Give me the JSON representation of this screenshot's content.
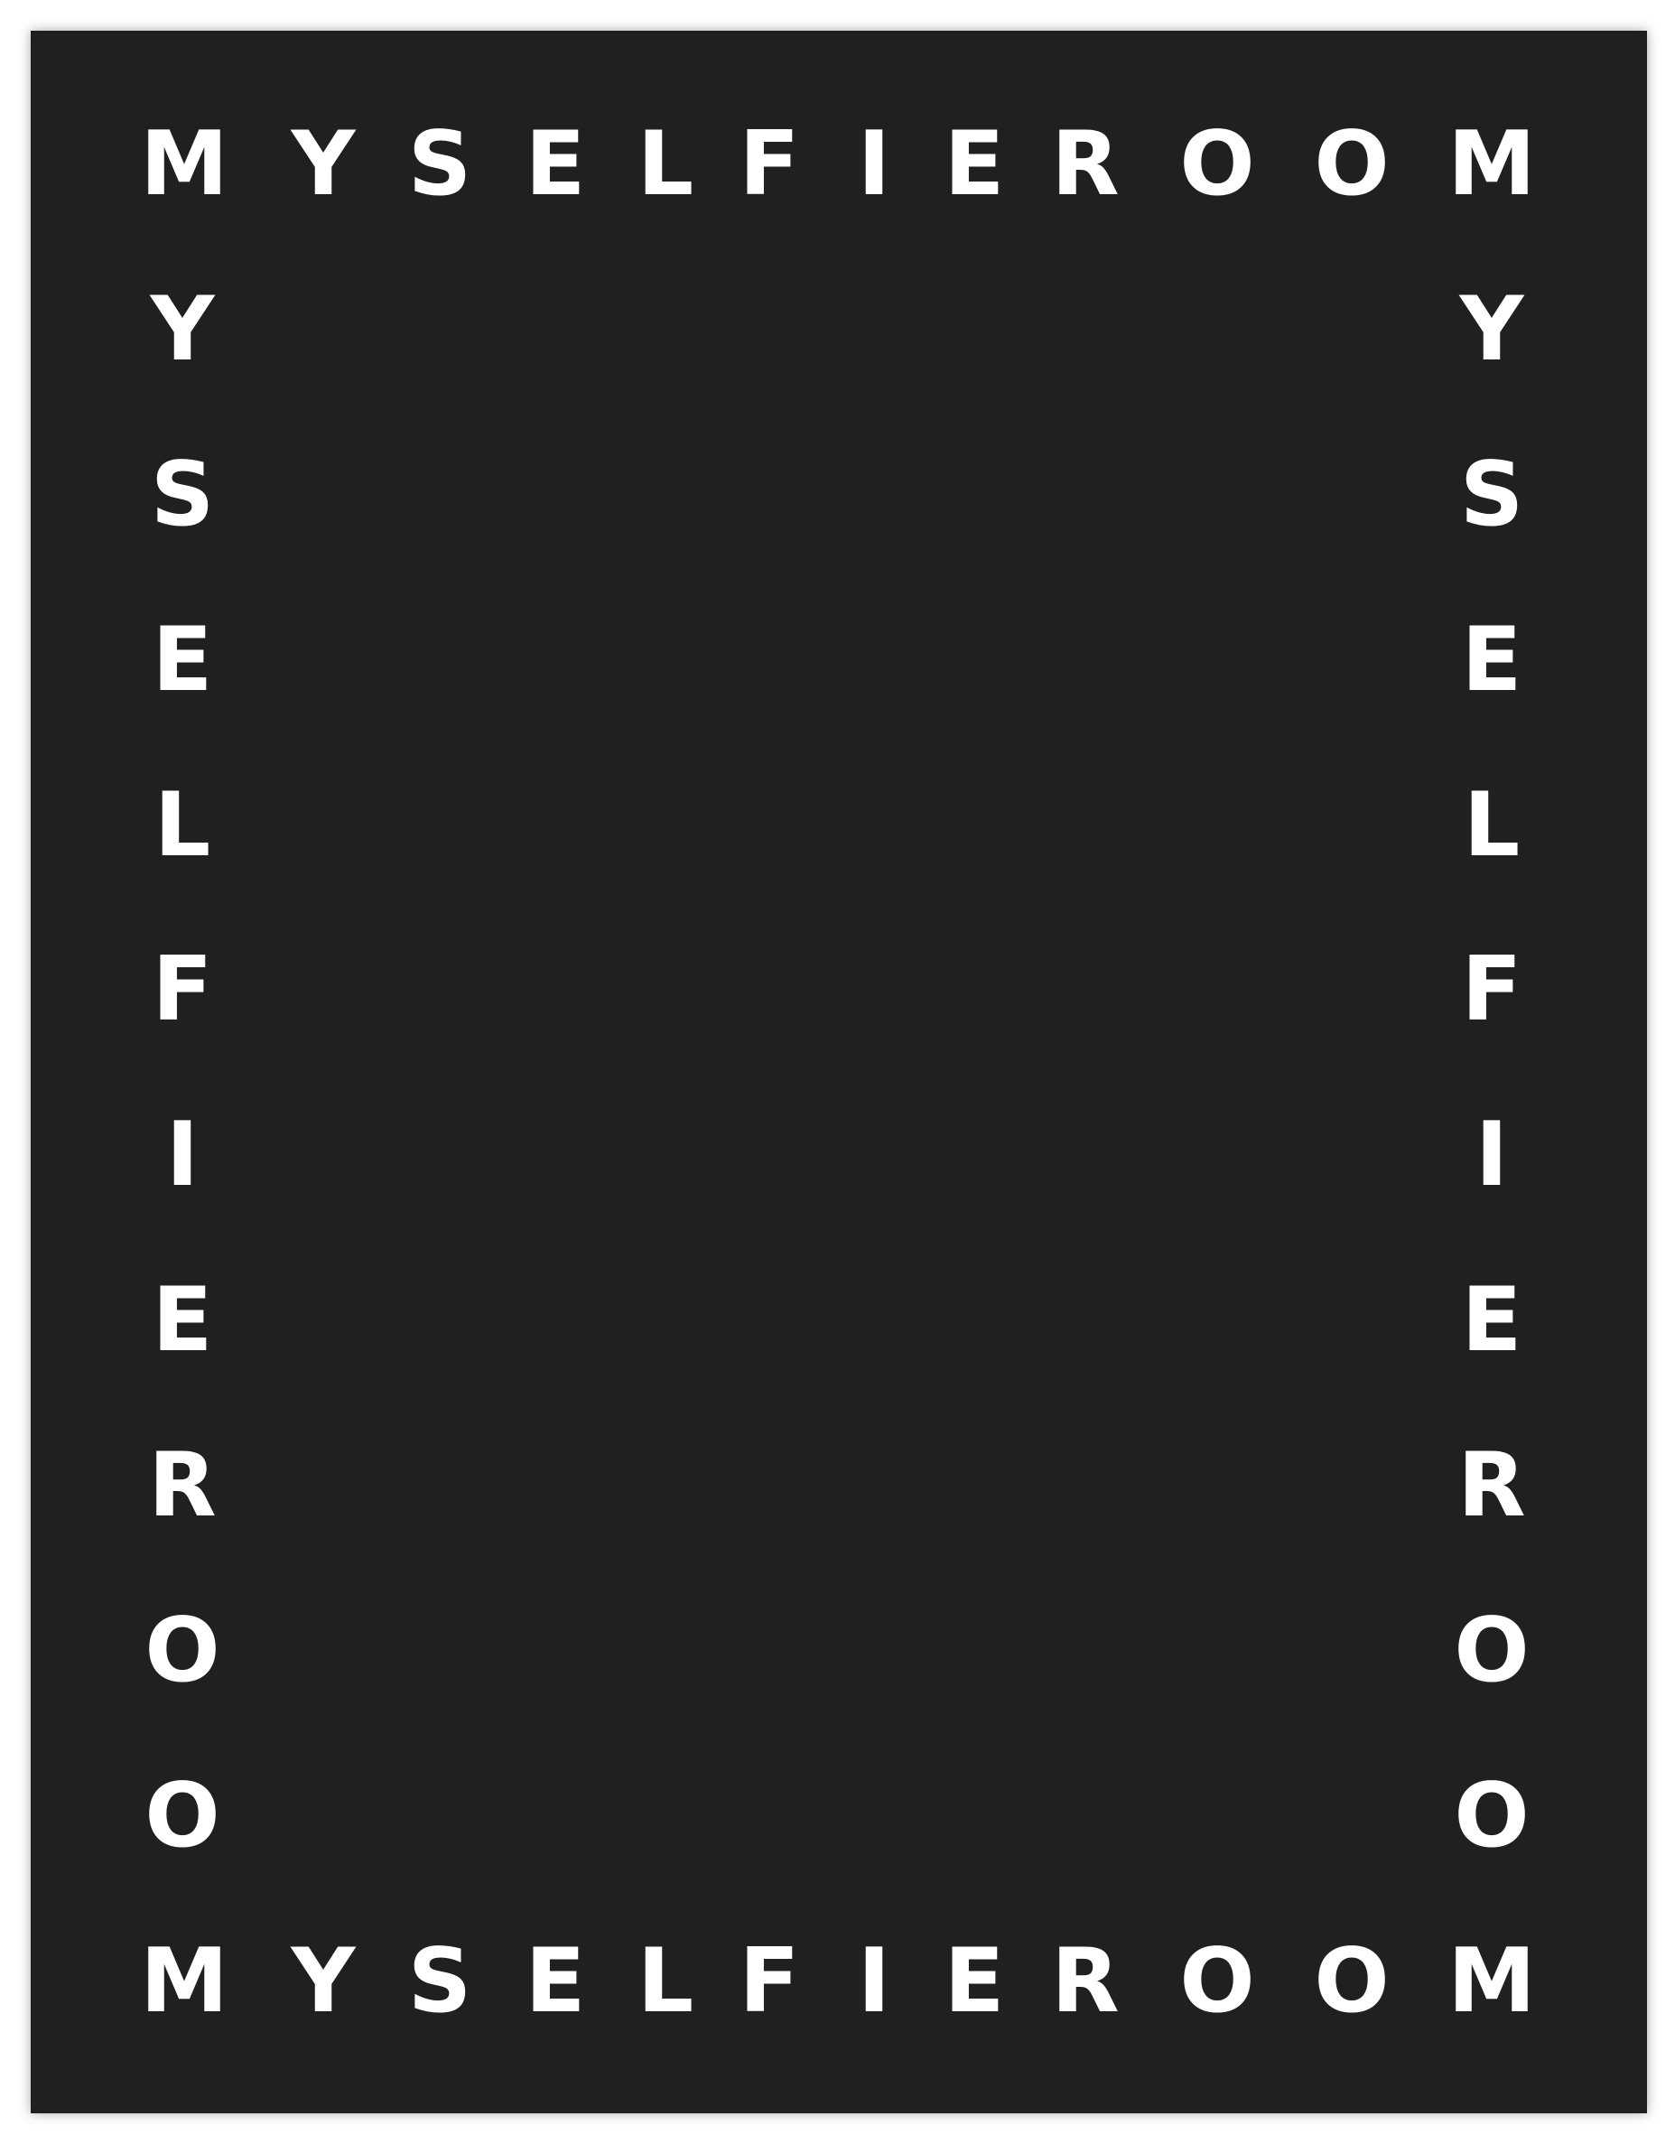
{
  "brand": {
    "text": "MYSELFIEROOM",
    "letters": [
      "M",
      "Y",
      "S",
      "E",
      "L",
      "F",
      "I",
      "E",
      "R",
      "O",
      "O",
      "M"
    ]
  },
  "colors": {
    "page_background": "#ffffff",
    "poster_background": "#202020",
    "letter_color": "#ffffff"
  }
}
